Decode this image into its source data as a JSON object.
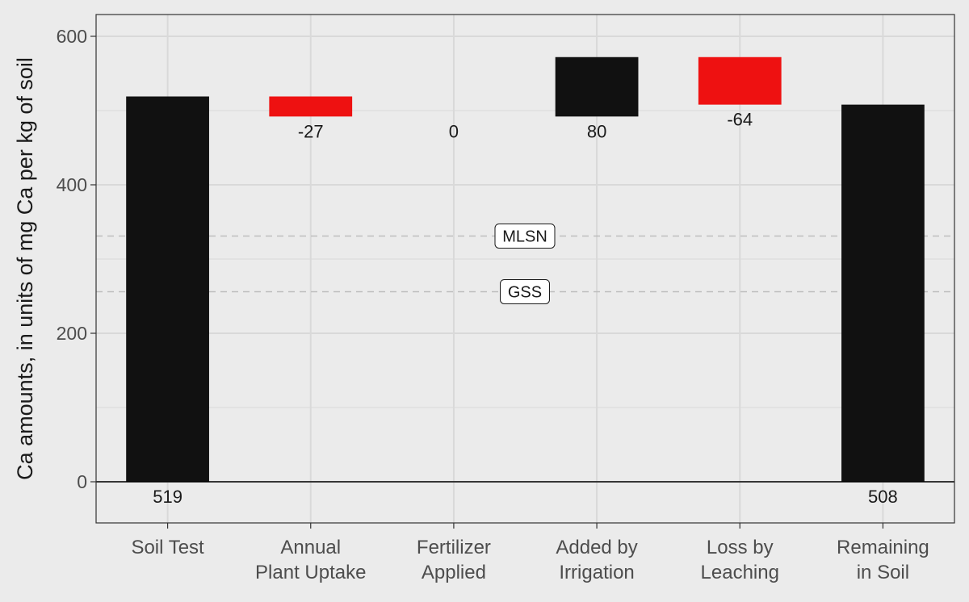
{
  "chart_data": {
    "type": "waterfall",
    "title": "",
    "xlabel": "",
    "ylabel": "Ca amounts, in units of mg Ca per kg of soil",
    "ylim": [
      -55,
      630
    ],
    "y_ticks": [
      0,
      200,
      400,
      600
    ],
    "grid": true,
    "categories": [
      [
        "Soil Test"
      ],
      [
        "Annual",
        "Plant Uptake"
      ],
      [
        "Fertilizer",
        "Applied"
      ],
      [
        "Added by",
        "Irrigation"
      ],
      [
        "Loss by",
        "Leaching"
      ],
      [
        "Remaining",
        "in Soil"
      ]
    ],
    "bars": [
      {
        "start": 0,
        "end": 519,
        "label": "519",
        "color": "#111111",
        "label_pos": "below"
      },
      {
        "start": 519,
        "end": 492,
        "label": "-27",
        "color": "#ee1111",
        "label_pos": "below"
      },
      {
        "start": 492,
        "end": 492,
        "label": "0",
        "color": "#ee1111",
        "label_pos": "below"
      },
      {
        "start": 492,
        "end": 572,
        "label": "80",
        "color": "#111111",
        "label_pos": "below"
      },
      {
        "start": 572,
        "end": 508,
        "label": "-64",
        "color": "#ee1111",
        "label_pos": "below"
      },
      {
        "start": 0,
        "end": 508,
        "label": "508",
        "color": "#111111",
        "label_pos": "below"
      }
    ],
    "reference_lines": [
      {
        "name": "MLSN",
        "value": 331
      },
      {
        "name": "GSS",
        "value": 256
      }
    ],
    "colors": {
      "panel_bg": "#ebebeb",
      "grid": "#d9d9d9",
      "increase": "#111111",
      "decrease": "#ee1111",
      "reference": "#bdbdbd"
    }
  }
}
